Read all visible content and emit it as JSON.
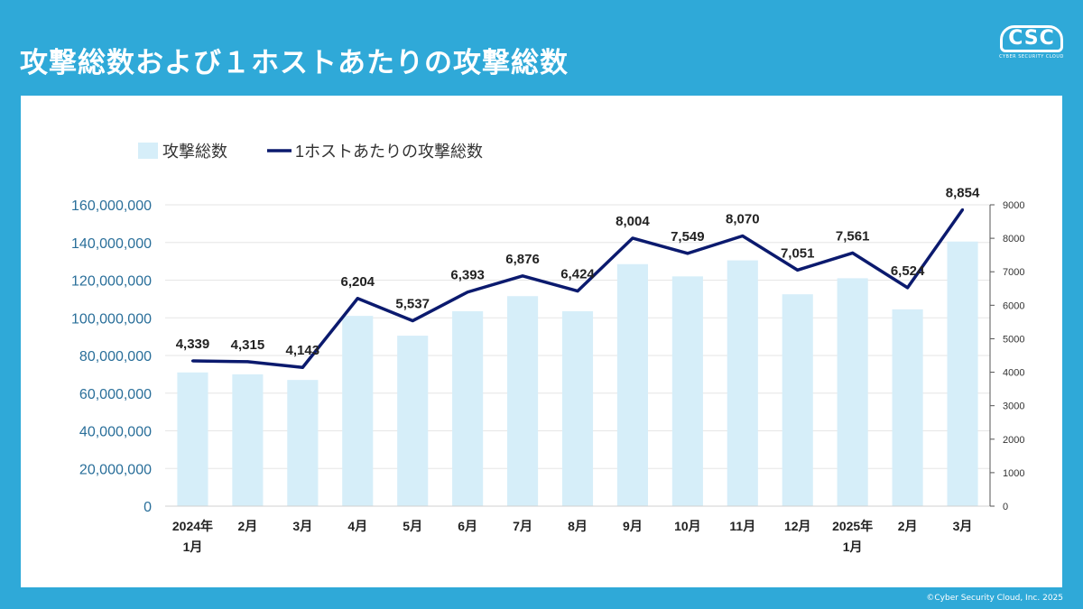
{
  "title": "攻撃総数および１ホストあたりの攻撃総数",
  "logo": {
    "mark": "CSC",
    "sub": "CYBER SECURITY CLOUD"
  },
  "footer": "©Cyber Security Cloud, Inc. 2025",
  "colors": {
    "background": "#2fa9d8",
    "bar": "#d6eef9",
    "line": "#0b1a6e",
    "left_axis_text": "#2a6f9a"
  },
  "chart_data": {
    "type": "bar",
    "categories": [
      [
        "2024年",
        "1月"
      ],
      [
        "2月"
      ],
      [
        "3月"
      ],
      [
        "4月"
      ],
      [
        "5月"
      ],
      [
        "6月"
      ],
      [
        "7月"
      ],
      [
        "8月"
      ],
      [
        "9月"
      ],
      [
        "10月"
      ],
      [
        "11月"
      ],
      [
        "12月"
      ],
      [
        "2025年",
        "1月"
      ],
      [
        "2月"
      ],
      [
        "3月"
      ]
    ],
    "series": [
      {
        "name": "攻撃総数",
        "type": "bar",
        "axis": "left",
        "values": [
          71000000,
          70000000,
          67000000,
          101000000,
          90500000,
          103500000,
          111500000,
          103500000,
          128500000,
          122000000,
          130500000,
          112500000,
          121000000,
          104500000,
          140500000
        ]
      },
      {
        "name": "1ホストあたりの攻撃総数",
        "type": "line",
        "axis": "right",
        "values": [
          4339,
          4315,
          4143,
          6204,
          5537,
          6393,
          6876,
          6424,
          8004,
          7549,
          8070,
          7051,
          7561,
          6524,
          8854
        ],
        "labels": [
          "4,339",
          "4,315",
          "4,143",
          "6,204",
          "5,537",
          "6,393",
          "6,876",
          "6,424",
          "8,004",
          "7,549",
          "8,070",
          "7,051",
          "7,561",
          "6,524",
          "8,854"
        ]
      }
    ],
    "y_left": {
      "min": 0,
      "max": 160000000,
      "ticks": [
        0,
        20000000,
        40000000,
        60000000,
        80000000,
        100000000,
        120000000,
        140000000,
        160000000
      ],
      "tick_labels": [
        "0",
        "20,000,000",
        "40,000,000",
        "60,000,000",
        "80,000,000",
        "100,000,000",
        "120,000,000",
        "140,000,000",
        "160,000,000"
      ]
    },
    "y_right": {
      "min": 0,
      "max": 9000,
      "ticks": [
        0,
        1000,
        2000,
        3000,
        4000,
        5000,
        6000,
        7000,
        8000,
        9000
      ],
      "tick_labels": [
        "0",
        "1000",
        "2000",
        "3000",
        "4000",
        "5000",
        "6000",
        "7000",
        "8000",
        "9000"
      ]
    },
    "grid": true,
    "legend": "top-left"
  }
}
